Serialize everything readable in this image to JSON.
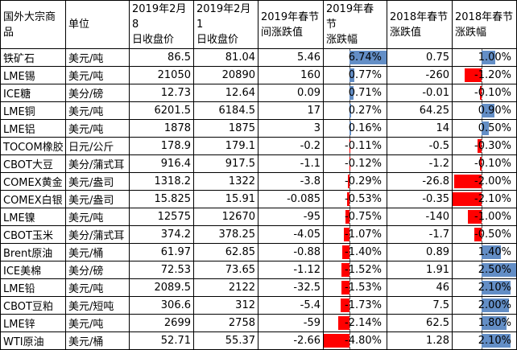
{
  "colors": {
    "bar_positive": "#638EC6",
    "bar_negative": "#FF0000",
    "grid_line": "#000000",
    "text": "#000000",
    "background": "#FFFFFF"
  },
  "chart_data": {
    "type": "table",
    "title": "",
    "columns": [
      "国外大宗商品",
      "单位",
      "2019年2月8日收盘价",
      "2019年2月1日收盘价",
      "2019年春节间涨跌值",
      "2019年春节涨跌幅",
      "2018年春节涨跌值",
      "2018年春节涨跌幅"
    ],
    "column_wrapped_labels": [
      "国外大宗商\n品",
      "单位",
      "2019年2月8\n日收盘价",
      "2019年2月1\n日收盘价",
      "2019年春节\n间涨跌值",
      "2019年春节\n涨跌幅",
      "2018年春节\n涨跌值",
      "2018年春节\n涨跌幅"
    ],
    "databar_column_indices": [
      5,
      7
    ],
    "rows": [
      {
        "commodity": "铁矿石",
        "unit": "美元/吨",
        "close_2019_02_08": "86.5",
        "close_2019_02_01": "81.04",
        "chg_2019": "5.46",
        "pct_2019": "6.74%",
        "chg_2018": "0.75",
        "pct_2018": "1.00%"
      },
      {
        "commodity": "LME锡",
        "unit": "美元/吨",
        "close_2019_02_08": "21050",
        "close_2019_02_01": "20890",
        "chg_2019": "160",
        "pct_2019": "0.77%",
        "chg_2018": "-260",
        "pct_2018": "-1.20%"
      },
      {
        "commodity": "ICE糖",
        "unit": "美分/磅",
        "close_2019_02_08": "12.73",
        "close_2019_02_01": "12.64",
        "chg_2019": "0.09",
        "pct_2019": "0.71%",
        "chg_2018": "-0.01",
        "pct_2018": "-0.10%"
      },
      {
        "commodity": "LME铜",
        "unit": "美元/吨",
        "close_2019_02_08": "6201.5",
        "close_2019_02_01": "6184.5",
        "chg_2019": "17",
        "pct_2019": "0.27%",
        "chg_2018": "64.25",
        "pct_2018": "0.90%"
      },
      {
        "commodity": "LME铝",
        "unit": "美元/吨",
        "close_2019_02_08": "1878",
        "close_2019_02_01": "1875",
        "chg_2019": "3",
        "pct_2019": "0.16%",
        "chg_2018": "14",
        "pct_2018": "0.50%"
      },
      {
        "commodity": "TOCOM橡胶",
        "unit": "日元/公斤",
        "close_2019_02_08": "178.9",
        "close_2019_02_01": "179.1",
        "chg_2019": "-0.2",
        "pct_2019": "-0.11%",
        "chg_2018": "-0.5",
        "pct_2018": "-0.30%"
      },
      {
        "commodity": "CBOT大豆",
        "unit": "美分/蒲式耳",
        "close_2019_02_08": "916.4",
        "close_2019_02_01": "917.5",
        "chg_2019": "-1.1",
        "pct_2019": "-0.12%",
        "chg_2018": "-1.2",
        "pct_2018": "-0.10%"
      },
      {
        "commodity": "COMEX黄金",
        "unit": "美元/盎司",
        "close_2019_02_08": "1318.2",
        "close_2019_02_01": "1322",
        "chg_2019": "-3.8",
        "pct_2019": "-0.29%",
        "chg_2018": "-26.8",
        "pct_2018": "-2.00%"
      },
      {
        "commodity": "COMEX白银",
        "unit": "美元/盎司",
        "close_2019_02_08": "15.825",
        "close_2019_02_01": "15.91",
        "chg_2019": "-0.085",
        "pct_2019": "-0.53%",
        "chg_2018": "-0.35",
        "pct_2018": "-2.10%"
      },
      {
        "commodity": "LME镍",
        "unit": "美元/吨",
        "close_2019_02_08": "12575",
        "close_2019_02_01": "12670",
        "chg_2019": "-95",
        "pct_2019": "-0.75%",
        "chg_2018": "-140",
        "pct_2018": "-1.00%"
      },
      {
        "commodity": "CBOT玉米",
        "unit": "美分/蒲式耳",
        "close_2019_02_08": "374.2",
        "close_2019_02_01": "378.25",
        "chg_2019": "-4.05",
        "pct_2019": "-1.07%",
        "chg_2018": "-1.7",
        "pct_2018": "-0.50%"
      },
      {
        "commodity": "Brent原油",
        "unit": "美元/桶",
        "close_2019_02_08": "61.97",
        "close_2019_02_01": "62.85",
        "chg_2019": "-0.88",
        "pct_2019": "-1.40%",
        "chg_2018": "0.89",
        "pct_2018": "1.40%"
      },
      {
        "commodity": "ICE美棉",
        "unit": "美分/磅",
        "close_2019_02_08": "72.53",
        "close_2019_02_01": "73.65",
        "chg_2019": "-1.12",
        "pct_2019": "-1.52%",
        "chg_2018": "1.91",
        "pct_2018": "2.50%"
      },
      {
        "commodity": "LME铅",
        "unit": "美元/吨",
        "close_2019_02_08": "2089.5",
        "close_2019_02_01": "2122",
        "chg_2019": "-32.5",
        "pct_2019": "-1.53%",
        "chg_2018": "46",
        "pct_2018": "2.10%"
      },
      {
        "commodity": "CBOT豆粕",
        "unit": "美元/短吨",
        "close_2019_02_08": "306.6",
        "close_2019_02_01": "312",
        "chg_2019": "-5.4",
        "pct_2019": "-1.73%",
        "chg_2018": "7.5",
        "pct_2018": "2.00%"
      },
      {
        "commodity": "LME锌",
        "unit": "美元/吨",
        "close_2019_02_08": "2699",
        "close_2019_02_01": "2758",
        "chg_2019": "-59",
        "pct_2019": "-2.14%",
        "chg_2018": "62.5",
        "pct_2018": "1.80%"
      },
      {
        "commodity": "WTI原油",
        "unit": "美元/桶",
        "close_2019_02_08": "52.71",
        "close_2019_02_01": "55.37",
        "chg_2019": "-2.66",
        "pct_2019": "-4.80%",
        "chg_2018": "1.28",
        "pct_2018": "2.10%"
      }
    ]
  }
}
